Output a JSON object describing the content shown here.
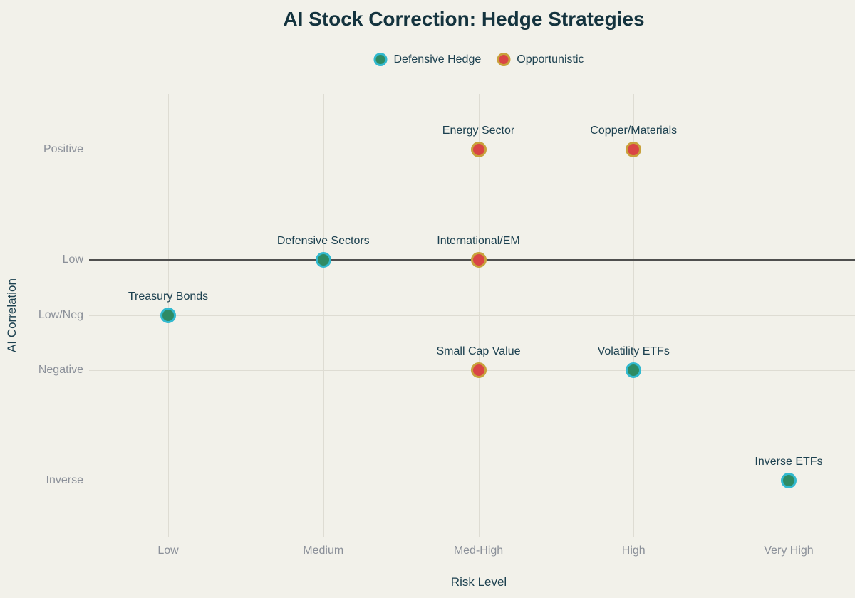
{
  "title": "AI Stock Correction: Hedge Strategies",
  "colors": {
    "background": "#f2f1ea",
    "title_text": "#14333e",
    "label_text": "#1d4150",
    "tick_text": "#8b9099",
    "gridline": "#dedcd3",
    "zero_line": "#4f4f4f",
    "defensive_fill": "#2e8b64",
    "defensive_ring": "#32b9cf",
    "opportunistic_fill": "#d94545",
    "opportunistic_ring": "#c9a13b"
  },
  "chart_data": {
    "type": "scatter",
    "title": "AI Stock Correction: Hedge Strategies",
    "xlabel": "Risk Level",
    "ylabel": "AI Correlation",
    "x_ticks": [
      "Low",
      "Medium",
      "Med-High",
      "High",
      "Very High"
    ],
    "y_ticks": [
      {
        "label": "Positive",
        "value": 1
      },
      {
        "label": "Low",
        "value": 0
      },
      {
        "label": "Low/Neg",
        "value": -0.5
      },
      {
        "label": "Negative",
        "value": -1
      },
      {
        "label": "Inverse",
        "value": -2
      }
    ],
    "ylim": [
      -2.75,
      1.5
    ],
    "grid": true,
    "zero_line_at": 0,
    "legend_position": "top",
    "series": [
      {
        "name": "Defensive Hedge",
        "fill": "#2e8b64",
        "ring": "#32b9cf",
        "points": [
          {
            "label": "Treasury Bonds",
            "x": "Low",
            "y": -0.5
          },
          {
            "label": "Defensive Sectors",
            "x": "Medium",
            "y": 0
          },
          {
            "label": "Volatility ETFs",
            "x": "High",
            "y": -1
          },
          {
            "label": "Inverse ETFs",
            "x": "Very High",
            "y": -2
          }
        ]
      },
      {
        "name": "Opportunistic",
        "fill": "#d94545",
        "ring": "#c9a13b",
        "points": [
          {
            "label": "Energy Sector",
            "x": "Med-High",
            "y": 1
          },
          {
            "label": "Copper/Materials",
            "x": "High",
            "y": 1
          },
          {
            "label": "International/EM",
            "x": "Med-High",
            "y": 0
          },
          {
            "label": "Small Cap Value",
            "x": "Med-High",
            "y": -1
          }
        ]
      }
    ]
  }
}
